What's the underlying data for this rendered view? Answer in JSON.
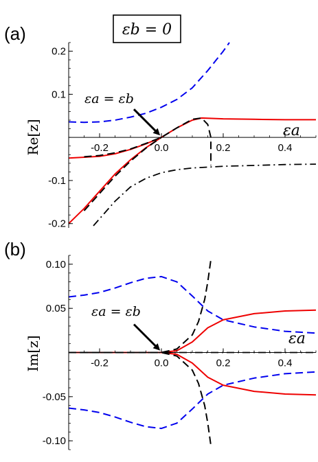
{
  "title_box": "εb = 0",
  "chart_data": [
    {
      "type": "line",
      "panel": "(a)",
      "ylabel": "Re[z]",
      "xlabel": "εa",
      "annotation": "εa = εb",
      "annotation_point": [
        0.0,
        0.0
      ],
      "xlim": [
        -0.3,
        0.5
      ],
      "ylim": [
        -0.21,
        0.22
      ],
      "xticks": [
        -0.2,
        0.0,
        0.2,
        0.4
      ],
      "xtick_labels": [
        "-0.2",
        "0.0",
        "0.2",
        "0.4"
      ],
      "yticks": [
        -0.2,
        -0.1,
        0.1,
        0.2
      ],
      "ytick_labels": [
        "-0.2",
        "-0.1",
        "0.1",
        "0.2"
      ],
      "grid": false,
      "series": [
        {
          "color": "#0000ee",
          "style": "dashed",
          "x": [
            -0.3,
            -0.25,
            -0.2,
            -0.15,
            -0.1,
            -0.05,
            0.0,
            0.05,
            0.1,
            0.15,
            0.2,
            0.22
          ],
          "y": [
            0.036,
            0.035,
            0.036,
            0.04,
            0.047,
            0.056,
            0.07,
            0.088,
            0.115,
            0.155,
            0.2,
            0.22
          ]
        },
        {
          "color": "#ee0000",
          "style": "solid",
          "x": [
            -0.3,
            -0.25,
            -0.2,
            -0.15,
            -0.1,
            -0.05,
            0.0,
            0.05,
            0.1,
            0.13,
            0.2,
            0.3,
            0.4,
            0.5
          ],
          "y": [
            -0.2,
            -0.165,
            -0.125,
            -0.085,
            -0.052,
            -0.024,
            0.0,
            0.022,
            0.04,
            0.045,
            0.043,
            0.042,
            0.041,
            0.041
          ]
        },
        {
          "color": "#ee0000",
          "style": "solid",
          "x": [
            -0.3,
            -0.2,
            -0.15,
            -0.1,
            -0.05,
            0.0
          ],
          "y": [
            -0.048,
            -0.044,
            -0.038,
            -0.028,
            -0.015,
            0.0
          ]
        },
        {
          "color": "#000000",
          "style": "dashed",
          "x": [
            -0.25,
            -0.2,
            -0.15,
            -0.1,
            -0.05,
            0.0,
            0.05,
            0.1,
            0.13,
            0.15,
            0.16,
            0.16
          ],
          "y": [
            -0.045,
            -0.042,
            -0.036,
            -0.027,
            -0.014,
            0.0,
            0.022,
            0.042,
            0.045,
            0.03,
            0.0,
            -0.065
          ]
        },
        {
          "color": "#000000",
          "style": "dashed",
          "x": [
            -0.25,
            -0.2,
            -0.15,
            -0.1,
            -0.05,
            0.0
          ],
          "y": [
            -0.17,
            -0.13,
            -0.09,
            -0.055,
            -0.025,
            0.0
          ]
        },
        {
          "color": "#000000",
          "style": "dashdot",
          "x": [
            -0.22,
            -0.15,
            -0.1,
            -0.05,
            0.0,
            0.05,
            0.1,
            0.2,
            0.3,
            0.4,
            0.5
          ],
          "y": [
            -0.205,
            -0.148,
            -0.115,
            -0.095,
            -0.082,
            -0.075,
            -0.071,
            -0.067,
            -0.065,
            -0.063,
            -0.062
          ]
        }
      ]
    },
    {
      "type": "line",
      "panel": "(b)",
      "ylabel": "Im[z]",
      "xlabel": "εa",
      "annotation": "εa = εb",
      "annotation_point": [
        0.0,
        0.0
      ],
      "xlim": [
        -0.3,
        0.5
      ],
      "ylim": [
        -0.11,
        0.11
      ],
      "xticks": [
        -0.2,
        0.0,
        0.2,
        0.4
      ],
      "xtick_labels": [
        "-0.2",
        "0.0",
        "0.2",
        "0.4"
      ],
      "yticks": [
        -0.1,
        -0.05,
        0.05,
        0.1
      ],
      "ytick_labels": [
        "-0.10",
        "-0.05",
        "0.05",
        "0.10"
      ],
      "grid": false,
      "series": [
        {
          "color": "#0000ee",
          "style": "dashed",
          "x": [
            -0.3,
            -0.25,
            -0.2,
            -0.15,
            -0.1,
            -0.05,
            0.0,
            0.05,
            0.1,
            0.15,
            0.2,
            0.3,
            0.4,
            0.5
          ],
          "y": [
            0.063,
            0.065,
            0.068,
            0.073,
            0.079,
            0.084,
            0.086,
            0.08,
            0.064,
            0.047,
            0.037,
            0.029,
            0.024,
            0.022
          ]
        },
        {
          "color": "#0000ee",
          "style": "dashed",
          "x": [
            -0.3,
            -0.25,
            -0.2,
            -0.15,
            -0.1,
            -0.05,
            0.0,
            0.05,
            0.1,
            0.15,
            0.2,
            0.3,
            0.4,
            0.5
          ],
          "y": [
            -0.063,
            -0.065,
            -0.068,
            -0.073,
            -0.079,
            -0.084,
            -0.086,
            -0.08,
            -0.064,
            -0.047,
            -0.037,
            -0.029,
            -0.024,
            -0.022
          ]
        },
        {
          "color": "#ee0000",
          "style": "solid",
          "x": [
            -0.3,
            0.0,
            0.05,
            0.1,
            0.15,
            0.2,
            0.3,
            0.4,
            0.5
          ],
          "y": [
            0.0,
            0.0,
            0.002,
            0.012,
            0.028,
            0.037,
            0.044,
            0.047,
            0.048
          ]
        },
        {
          "color": "#ee0000",
          "style": "solid",
          "x": [
            -0.3,
            0.0,
            0.05,
            0.1,
            0.15,
            0.2,
            0.3,
            0.4,
            0.5
          ],
          "y": [
            0.0,
            0.0,
            -0.002,
            -0.012,
            -0.028,
            -0.037,
            -0.044,
            -0.047,
            -0.048
          ]
        },
        {
          "color": "#000000",
          "style": "dashed",
          "x": [
            -0.3,
            0.0,
            0.05,
            0.1,
            0.12,
            0.14,
            0.15,
            0.16
          ],
          "y": [
            0.0,
            0.0,
            0.004,
            0.02,
            0.035,
            0.06,
            0.08,
            0.105
          ]
        },
        {
          "color": "#000000",
          "style": "dashed",
          "x": [
            -0.3,
            0.0,
            0.05,
            0.1,
            0.12,
            0.14,
            0.15,
            0.16
          ],
          "y": [
            0.0,
            0.0,
            -0.004,
            -0.02,
            -0.035,
            -0.06,
            -0.08,
            -0.105
          ]
        },
        {
          "color": "#000000",
          "style": "dashdot",
          "x": [
            -0.3,
            0.5
          ],
          "y": [
            0.0,
            0.0
          ]
        }
      ]
    }
  ]
}
